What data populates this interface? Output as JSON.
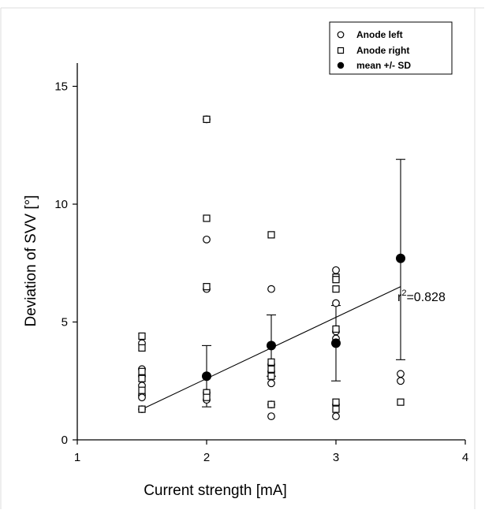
{
  "chart_data": {
    "type": "scatter",
    "xlabel": "Current strength [mA]",
    "ylabel": "Deviation of SVV [°]",
    "xlim": [
      1,
      4
    ],
    "ylim": [
      0,
      16
    ],
    "xticks": [
      1,
      2,
      3,
      4
    ],
    "yticks": [
      0,
      5,
      10,
      15
    ],
    "legend": {
      "position": "top-right",
      "entries": [
        "Anode left",
        "Anode right",
        "mean +/- SD"
      ]
    },
    "series": [
      {
        "name": "Anode left",
        "marker": "open-circle",
        "points": [
          [
            1.5,
            4.1
          ],
          [
            1.5,
            3.0
          ],
          [
            1.5,
            2.7
          ],
          [
            1.5,
            2.3
          ],
          [
            1.5,
            1.9
          ],
          [
            1.5,
            1.8
          ],
          [
            1.5,
            1.3
          ],
          [
            2,
            13.6
          ],
          [
            2,
            8.5
          ],
          [
            2,
            6.4
          ],
          [
            2,
            2.0
          ],
          [
            2,
            1.7
          ],
          [
            2.5,
            6.4
          ],
          [
            2.5,
            3.2
          ],
          [
            2.5,
            2.9
          ],
          [
            2.5,
            2.4
          ],
          [
            2.5,
            1.5
          ],
          [
            2.5,
            1.0
          ],
          [
            3,
            7.2
          ],
          [
            3,
            5.8
          ],
          [
            3,
            4.6
          ],
          [
            3,
            4.3
          ],
          [
            3,
            1.5
          ],
          [
            3,
            1.0
          ],
          [
            3.5,
            2.8
          ],
          [
            3.5,
            2.5
          ]
        ]
      },
      {
        "name": "Anode right",
        "marker": "open-square",
        "points": [
          [
            1.5,
            4.4
          ],
          [
            1.5,
            3.9
          ],
          [
            1.5,
            2.9
          ],
          [
            1.5,
            2.6
          ],
          [
            1.5,
            2.1
          ],
          [
            1.5,
            1.3
          ],
          [
            2,
            13.6
          ],
          [
            2,
            9.4
          ],
          [
            2,
            6.5
          ],
          [
            2,
            2.0
          ],
          [
            2,
            1.8
          ],
          [
            2.5,
            8.7
          ],
          [
            2.5,
            3.3
          ],
          [
            2.5,
            3.0
          ],
          [
            2.5,
            2.7
          ],
          [
            2.5,
            1.5
          ],
          [
            3,
            6.9
          ],
          [
            3,
            6.8
          ],
          [
            3,
            6.4
          ],
          [
            3,
            4.7
          ],
          [
            3,
            1.6
          ],
          [
            3,
            1.3
          ],
          [
            3.5,
            1.6
          ]
        ]
      },
      {
        "name": "mean +/- SD",
        "marker": "filled-circle",
        "points": [
          {
            "x": 2,
            "mean": 2.7,
            "sd_low": 1.4,
            "sd_high": 4.0
          },
          {
            "x": 2.5,
            "mean": 4.0,
            "sd_low": 2.7,
            "sd_high": 5.3
          },
          {
            "x": 3,
            "mean": 4.1,
            "sd_low": 2.5,
            "sd_high": 5.7
          },
          {
            "x": 3.5,
            "mean": 7.7,
            "sd_low": 3.4,
            "sd_high": 11.9
          }
        ]
      }
    ],
    "regression": {
      "x": [
        1.5,
        3.5
      ],
      "y": [
        1.3,
        6.5
      ]
    },
    "annotation": {
      "base": "r",
      "superscript": "2",
      "suffix": "=0.828"
    }
  }
}
